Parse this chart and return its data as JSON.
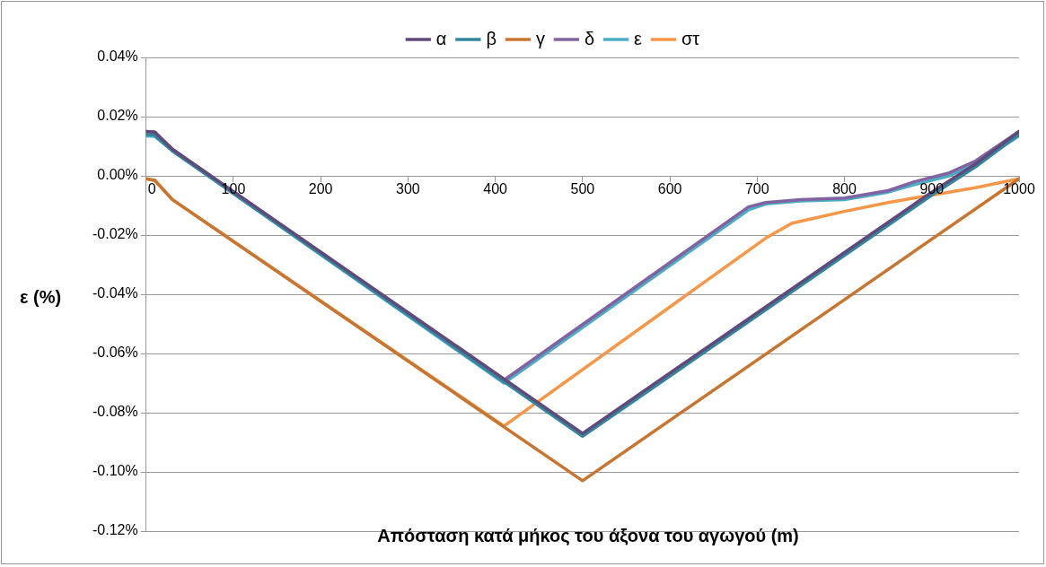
{
  "chart_data": {
    "type": "line",
    "xlabel": "Απόσταση κατά μήκος του άξονα του αγωγού (m)",
    "ylabel": "ε (%)",
    "legend": "top",
    "grid": "y",
    "marker": "none",
    "line_style": "solid",
    "xlim": [
      0,
      1000
    ],
    "xticks": [
      0,
      100,
      200,
      300,
      400,
      500,
      600,
      700,
      800,
      900,
      1000
    ],
    "ylim": [
      -0.12,
      0.04
    ],
    "yticks": [
      {
        "value": -0.12,
        "label": "-0.12%"
      },
      {
        "value": -0.1,
        "label": "-0.10%"
      },
      {
        "value": -0.08,
        "label": "-0.08%"
      },
      {
        "value": -0.06,
        "label": "-0.06%"
      },
      {
        "value": -0.04,
        "label": "-0.04%"
      },
      {
        "value": -0.02,
        "label": "-0.02%"
      },
      {
        "value": 0,
        "label": "0.00%"
      },
      {
        "value": 0.02,
        "label": "0.02%"
      },
      {
        "value": 0.04,
        "label": "0.04%"
      }
    ],
    "series": [
      {
        "name": "α",
        "color": "#604a7b",
        "x": [
          0,
          10,
          30,
          500,
          900,
          950,
          1000
        ],
        "values": [
          0.015,
          0.0148,
          0.009,
          -0.087,
          -0.0055,
          0.004,
          0.015
        ]
      },
      {
        "name": "β",
        "color": "#31859c",
        "x": [
          0,
          10,
          30,
          500,
          900,
          950,
          1000
        ],
        "values": [
          0.014,
          0.0138,
          0.0085,
          -0.088,
          -0.0065,
          0.003,
          0.014
        ]
      },
      {
        "name": "γ",
        "color": "#c87530",
        "x": [
          0,
          10,
          30,
          500,
          1000
        ],
        "values": [
          -0.001,
          -0.0015,
          -0.008,
          -0.103,
          -0.001
        ]
      },
      {
        "name": "δ",
        "color": "#8064a2",
        "x": [
          0,
          10,
          30,
          410,
          690,
          710,
          750,
          800,
          850,
          880,
          920,
          950,
          1000
        ],
        "values": [
          0.015,
          0.0148,
          0.009,
          -0.069,
          -0.0105,
          -0.009,
          -0.008,
          -0.0075,
          -0.005,
          -0.002,
          0.001,
          0.005,
          0.015
        ]
      },
      {
        "name": "ε",
        "color": "#4bacc6",
        "x": [
          0,
          10,
          30,
          410,
          690,
          710,
          750,
          800,
          850,
          880,
          920,
          950,
          1000
        ],
        "values": [
          0.0135,
          0.0133,
          0.0085,
          -0.07,
          -0.0115,
          -0.0095,
          -0.0085,
          -0.008,
          -0.0055,
          -0.003,
          0.0,
          0.004,
          0.0135
        ]
      },
      {
        "name": "στ",
        "color": "#f79646",
        "x": [
          0,
          10,
          30,
          410,
          710,
          740,
          800,
          850,
          900,
          950,
          1000
        ],
        "values": [
          -0.001,
          -0.0015,
          -0.008,
          -0.0845,
          -0.021,
          -0.016,
          -0.012,
          -0.009,
          -0.0065,
          -0.004,
          -0.001
        ]
      }
    ]
  }
}
